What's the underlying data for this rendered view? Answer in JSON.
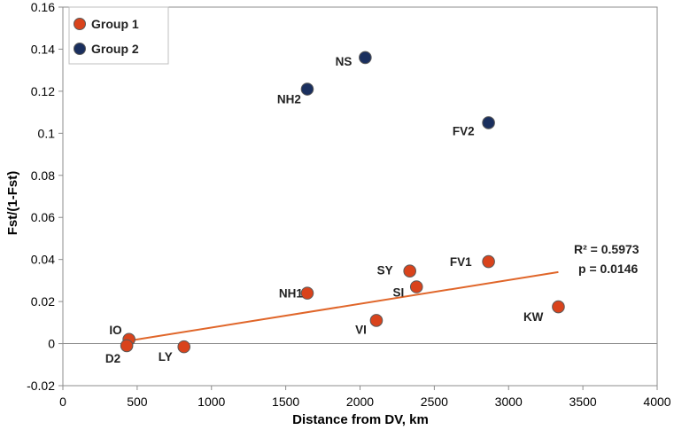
{
  "chart_data": {
    "type": "scatter",
    "xlabel": "Distance from DV, km",
    "ylabel": "Fst/(1-Fst)",
    "xlim": [
      0,
      4000
    ],
    "ylim": [
      -0.02,
      0.16
    ],
    "x_ticks": [
      0,
      500,
      1000,
      1500,
      2000,
      2500,
      3000,
      3500,
      4000
    ],
    "y_ticks": [
      -0.02,
      0,
      0.02,
      0.04,
      0.06,
      0.08,
      0.1,
      0.12,
      0.14,
      0.16
    ],
    "y_tick_labels": [
      "-0.02",
      "0",
      "0.02",
      "0.04",
      "0.06",
      "0.08",
      "0.1",
      "0.12",
      "0.14",
      "0.16"
    ],
    "x_tick_labels": [
      "0",
      "500",
      "1000",
      "1500",
      "2000",
      "2500",
      "3000",
      "3500",
      "4000"
    ],
    "legend_position": "top-left",
    "grid": false,
    "series": [
      {
        "name": "Group 1",
        "color": "#d9431c",
        "points": [
          {
            "label": "IO",
            "x": 445,
            "y": 0.002
          },
          {
            "label": "D2",
            "x": 430,
            "y": -0.001
          },
          {
            "label": "LY",
            "x": 815,
            "y": -0.0015
          },
          {
            "label": "NH1",
            "x": 1645,
            "y": 0.024
          },
          {
            "label": "VI",
            "x": 2110,
            "y": 0.011
          },
          {
            "label": "SY",
            "x": 2335,
            "y": 0.0345
          },
          {
            "label": "SI",
            "x": 2380,
            "y": 0.027
          },
          {
            "label": "FV1",
            "x": 2865,
            "y": 0.039
          },
          {
            "label": "KW",
            "x": 3335,
            "y": 0.0175
          }
        ]
      },
      {
        "name": "Group 2",
        "color": "#1a2f5e",
        "points": [
          {
            "label": "NS",
            "x": 2035,
            "y": 0.136
          },
          {
            "label": "NH2",
            "x": 1645,
            "y": 0.121
          },
          {
            "label": "FV2",
            "x": 2865,
            "y": 0.105
          }
        ]
      }
    ],
    "trendline": {
      "color": "#e0662a",
      "x": [
        430,
        3335
      ],
      "y": [
        0.0012,
        0.034
      ]
    },
    "annotations": {
      "r2": "R² = 0.5973",
      "p": "p = 0.0146"
    }
  }
}
